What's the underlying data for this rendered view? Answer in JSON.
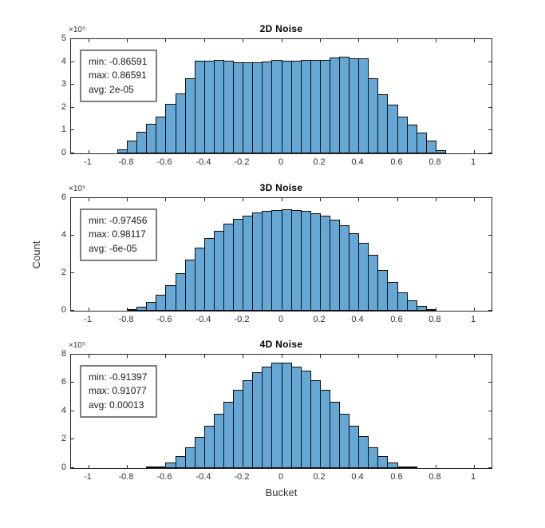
{
  "figure": {
    "xlabel": "Bucket",
    "ylabel": "Count",
    "background": "#ffffff"
  },
  "style": {
    "bar_fill": "#66a8d5",
    "bar_edge": "#0d0d0d",
    "axis_color": "#262626",
    "tick_label_color": "#333333",
    "annotation_border": "#7f7f7f"
  },
  "chart_data": [
    {
      "type": "bar",
      "title": "2D Noise",
      "y_exponent_label": "×10⁵",
      "xlim": [
        -1.09,
        1.09
      ],
      "x_ticks": [
        -1,
        -0.8,
        -0.6,
        -0.4,
        -0.2,
        0,
        0.2,
        0.4,
        0.6,
        0.8,
        1
      ],
      "x_tick_labels": [
        "-1",
        "-0.8",
        "-0.6",
        "-0.4",
        "-0.2",
        "0",
        "0.2",
        "0.4",
        "0.6",
        "0.8",
        "1"
      ],
      "ylim_counts": [
        0,
        500000
      ],
      "y_ticks": [
        0,
        100000,
        200000,
        300000,
        400000,
        500000
      ],
      "y_tick_labels": [
        "0",
        "1",
        "2",
        "3",
        "4",
        "5"
      ],
      "bin_width": 0.05,
      "first_bin_left_edge": -0.85,
      "counts": [
        18000,
        57000,
        95000,
        130000,
        162000,
        217000,
        262000,
        330000,
        405000,
        405000,
        410000,
        405000,
        400000,
        398000,
        400000,
        402000,
        410000,
        405000,
        405000,
        408000,
        408000,
        408000,
        418000,
        422000,
        415000,
        415000,
        330000,
        260000,
        215000,
        160000,
        125000,
        90000,
        55000,
        15000
      ],
      "annotation_lines": [
        "min: -0.86591",
        "max: 0.86591",
        "avg: 2e-05"
      ]
    },
    {
      "type": "bar",
      "title": "3D Noise",
      "y_exponent_label": "×10⁵",
      "xlim": [
        -1.09,
        1.09
      ],
      "x_ticks": [
        -1,
        -0.8,
        -0.6,
        -0.4,
        -0.2,
        0,
        0.2,
        0.4,
        0.6,
        0.8,
        1
      ],
      "x_tick_labels": [
        "-1",
        "-0.8",
        "-0.6",
        "-0.4",
        "-0.2",
        "0",
        "0.2",
        "0.4",
        "0.6",
        "0.8",
        "1"
      ],
      "ylim_counts": [
        0,
        600000
      ],
      "y_ticks": [
        0,
        200000,
        400000,
        600000
      ],
      "y_tick_labels": [
        "0",
        "2",
        "4",
        "6"
      ],
      "bin_width": 0.05,
      "first_bin_left_edge": -0.8,
      "counts": [
        8000,
        22000,
        48000,
        85000,
        138000,
        202000,
        272000,
        338000,
        388000,
        427000,
        462000,
        490000,
        508000,
        522000,
        532000,
        538000,
        540000,
        538000,
        530000,
        520000,
        505000,
        485000,
        455000,
        412000,
        362000,
        298000,
        218000,
        152000,
        98000,
        55000,
        25000,
        10000
      ],
      "annotation_lines": [
        "min: -0.97456",
        "max: 0.98117",
        "avg: -6e-05"
      ]
    },
    {
      "type": "bar",
      "title": "4D Noise",
      "y_exponent_label": "×10⁵",
      "xlim": [
        -1.09,
        1.09
      ],
      "x_ticks": [
        -1,
        -0.8,
        -0.6,
        -0.4,
        -0.2,
        0,
        0.2,
        0.4,
        0.6,
        0.8,
        1
      ],
      "x_tick_labels": [
        "-1",
        "-0.8",
        "-0.6",
        "-0.4",
        "-0.2",
        "0",
        "0.2",
        "0.4",
        "0.6",
        "0.8",
        "1"
      ],
      "ylim_counts": [
        0,
        800000
      ],
      "y_ticks": [
        0,
        200000,
        400000,
        600000,
        800000
      ],
      "y_tick_labels": [
        "0",
        "2",
        "4",
        "6",
        "8"
      ],
      "bin_width": 0.05,
      "first_bin_left_edge": -0.7,
      "counts": [
        4000,
        14000,
        42000,
        85000,
        145000,
        220000,
        300000,
        385000,
        470000,
        550000,
        620000,
        678000,
        718000,
        745000,
        745000,
        718000,
        685000,
        620000,
        550000,
        470000,
        385000,
        300000,
        225000,
        145000,
        85000,
        42000,
        14000,
        4000
      ],
      "annotation_lines": [
        "min: -0.91397",
        "max: 0.91077",
        "avg: 0.00013"
      ]
    }
  ]
}
